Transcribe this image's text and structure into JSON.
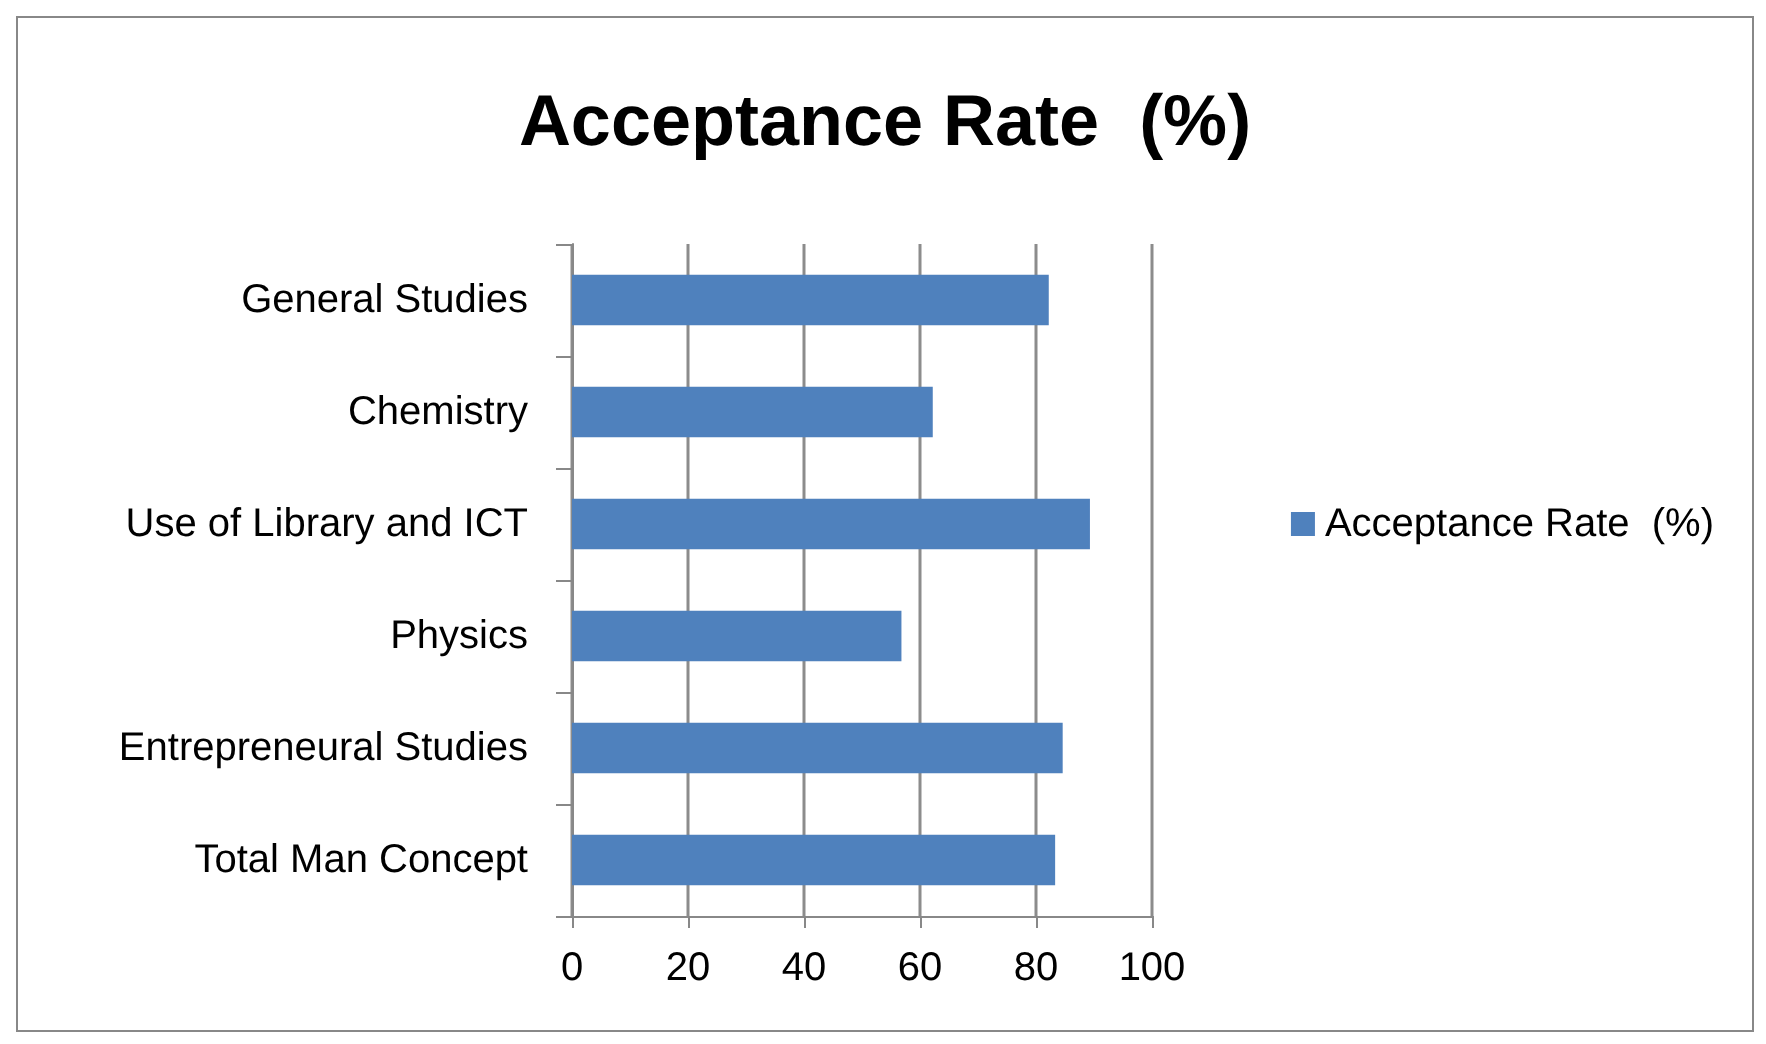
{
  "chart_data": {
    "type": "bar",
    "orientation": "horizontal",
    "title": "Acceptance Rate  (%)",
    "categories": [
      "General Studies",
      "Chemistry",
      "Use of Library and ICT",
      "Physics",
      "Entrepreneural Studies",
      "Total Man Concept"
    ],
    "series": [
      {
        "name": "Acceptance Rate  (%)",
        "color": "#4f81bd",
        "values": [
          82.2,
          62.2,
          89.3,
          56.8,
          84.6,
          83.3
        ]
      }
    ],
    "xlim": [
      0,
      100
    ],
    "xticks": [
      0,
      20,
      40,
      60,
      80,
      100
    ],
    "grid": "x",
    "legend": "right"
  }
}
